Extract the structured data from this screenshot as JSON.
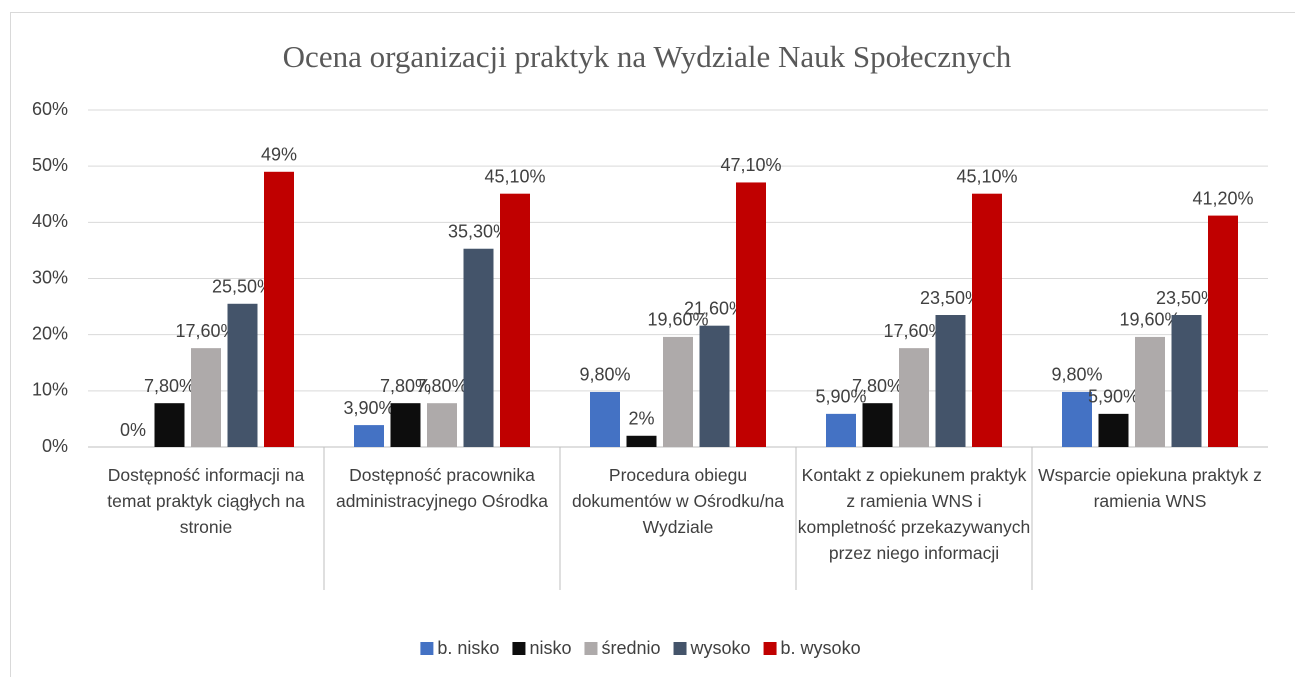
{
  "chart_data": {
    "type": "bar",
    "title": "Ocena organizacji praktyk na Wydziale Nauk Społecznych",
    "categories": [
      "Dostępność informacji na temat praktyk ciągłych na stronie",
      "Dostępność pracownika administracyjnego Ośrodka",
      "Procedura obiegu dokumentów w Ośrodku/na Wydziale",
      "Kontakt z opiekunem praktyk z ramienia WNS i kompletność przekazywanych przez niego informacji",
      "Wsparcie opiekuna praktyk z ramienia WNS"
    ],
    "series": [
      {
        "name": "b. nisko",
        "color": "#4472c4",
        "values": [
          0,
          3.9,
          9.8,
          5.9,
          9.8
        ],
        "value_labels": [
          "0%",
          "3,90%",
          "9,80%",
          "5,90%",
          "9,80%"
        ]
      },
      {
        "name": "nisko",
        "color": "#0d0d0d",
        "values": [
          7.8,
          7.8,
          2,
          7.8,
          5.9
        ],
        "value_labels": [
          "7,80%",
          "7,80%",
          "2%",
          "7,80%",
          "5,90%"
        ]
      },
      {
        "name": "średnio",
        "color": "#aeaaaa",
        "values": [
          17.6,
          7.8,
          19.6,
          17.6,
          19.6
        ],
        "value_labels": [
          "17,60%",
          "7,80%",
          "19,60%",
          "17,60%",
          "19,60%"
        ]
      },
      {
        "name": "wysoko",
        "color": "#44546a",
        "values": [
          25.5,
          35.3,
          21.6,
          23.5,
          23.5
        ],
        "value_labels": [
          "25,50%",
          "35,30%",
          "21,60%",
          "23,50%",
          "23,50%"
        ]
      },
      {
        "name": "b. wysoko",
        "color": "#c00000",
        "values": [
          49,
          45.1,
          47.1,
          45.1,
          41.2
        ],
        "value_labels": [
          "49%",
          "45,10%",
          "47,10%",
          "45,10%",
          "41,20%"
        ]
      }
    ],
    "ylim": [
      0,
      60
    ],
    "yticks": [
      {
        "value": 0,
        "label": "0%"
      },
      {
        "value": 10,
        "label": "10%"
      },
      {
        "value": 20,
        "label": "20%"
      },
      {
        "value": 30,
        "label": "30%"
      },
      {
        "value": 40,
        "label": "40%"
      },
      {
        "value": 50,
        "label": "50%"
      },
      {
        "value": 60,
        "label": "60%"
      }
    ],
    "grid": true,
    "legend": "bottom"
  }
}
